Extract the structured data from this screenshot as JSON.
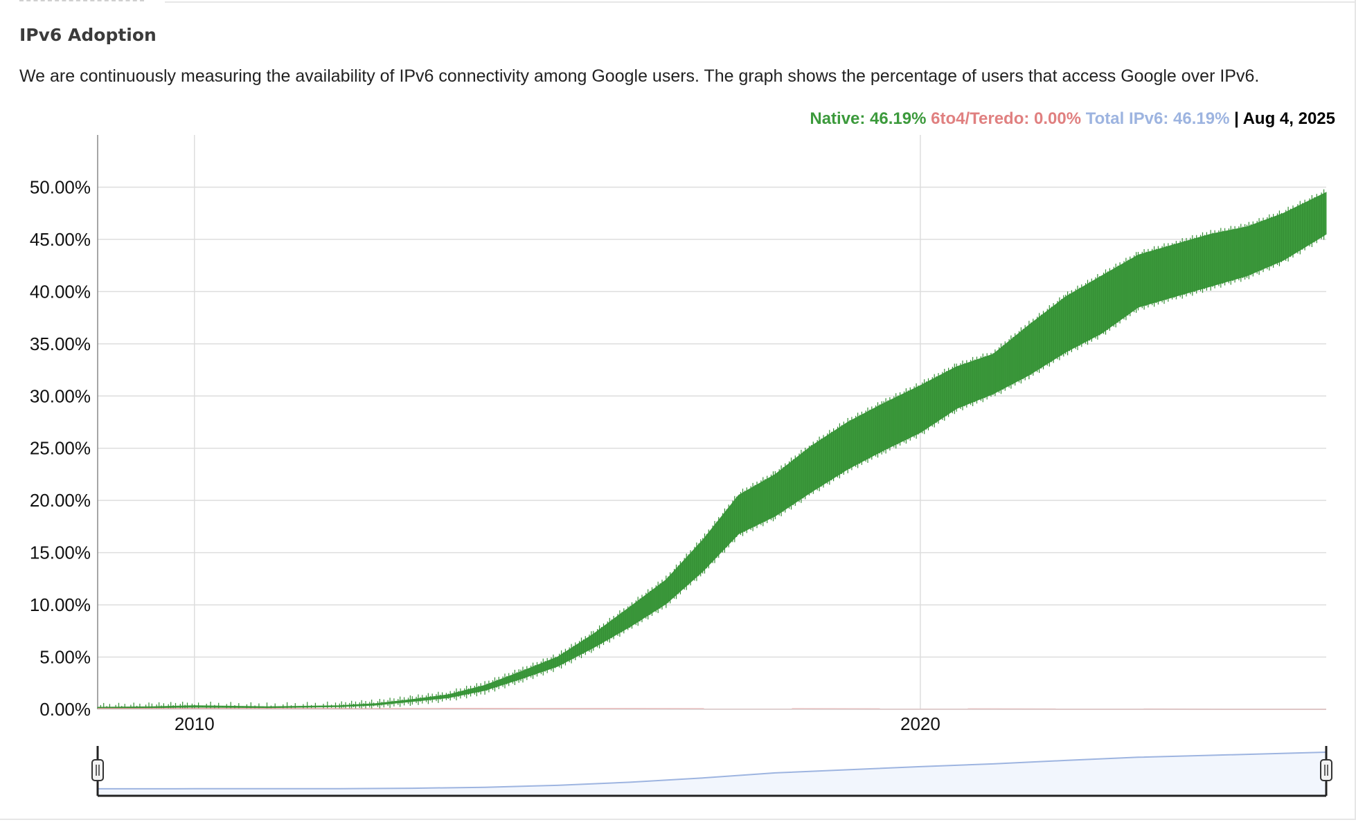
{
  "section": {
    "title": "IPv6 Adoption",
    "description": "We are continuously measuring the availability of IPv6 connectivity among Google users. The graph shows the percentage of users that access Google over IPv6."
  },
  "legend": {
    "native_label": "Native: 46.19%",
    "teredo_label": "6to4/Teredo: 0.00%",
    "total_label": "Total IPv6: 46.19%",
    "separator": "|",
    "date_label": "Aug 4, 2025"
  },
  "colors": {
    "native": "#3c9a3c",
    "teredo": "#e08080",
    "total": "#9db4e0",
    "grid": "#dddddd",
    "axis": "#555555"
  },
  "chart_data": {
    "type": "area",
    "title": "",
    "xlabel": "",
    "ylabel": "",
    "xlim": [
      "2008-09-01",
      "2025-08-04"
    ],
    "ylim": [
      0,
      55
    ],
    "grid": true,
    "legend_position": "top-right",
    "y_ticks": [
      "0.00%",
      "5.00%",
      "10.00%",
      "15.00%",
      "20.00%",
      "25.00%",
      "30.00%",
      "35.00%",
      "40.00%",
      "45.00%",
      "50.00%"
    ],
    "y_tick_values": [
      0,
      5,
      10,
      15,
      20,
      25,
      30,
      35,
      40,
      45,
      50
    ],
    "x_ticks": [
      "2010",
      "2020"
    ],
    "x_tick_values": [
      "2010-01-01",
      "2020-01-01"
    ],
    "series": [
      {
        "name": "Native",
        "x": [
          "2008-09-01",
          "2009-06-01",
          "2010-01-01",
          "2011-01-01",
          "2012-01-01",
          "2012-07-01",
          "2013-01-01",
          "2013-07-01",
          "2014-01-01",
          "2014-07-01",
          "2015-01-01",
          "2015-07-01",
          "2016-01-01",
          "2016-07-01",
          "2017-01-01",
          "2017-07-01",
          "2018-01-01",
          "2018-07-01",
          "2019-01-01",
          "2019-07-01",
          "2020-01-01",
          "2020-07-01",
          "2021-01-01",
          "2021-07-01",
          "2022-01-01",
          "2022-07-01",
          "2023-01-01",
          "2023-07-01",
          "2024-01-01",
          "2024-07-01",
          "2025-01-01",
          "2025-08-04"
        ],
        "low": [
          0.1,
          0.15,
          0.2,
          0.15,
          0.25,
          0.4,
          0.75,
          1.1,
          1.8,
          2.9,
          4.1,
          5.9,
          7.9,
          10.1,
          13.2,
          16.8,
          18.5,
          20.8,
          23.0,
          24.8,
          26.5,
          28.8,
          30.2,
          32.0,
          34.2,
          36.0,
          38.5,
          39.5,
          40.5,
          41.5,
          43.0,
          45.5
        ],
        "high": [
          0.2,
          0.25,
          0.35,
          0.25,
          0.35,
          0.55,
          0.95,
          1.4,
          2.3,
          3.6,
          5.0,
          7.2,
          9.8,
          12.4,
          16.2,
          20.5,
          22.5,
          25.2,
          27.5,
          29.3,
          31.0,
          32.8,
          34.0,
          36.8,
          39.5,
          41.5,
          43.5,
          44.5,
          45.5,
          46.2,
          47.5,
          49.5
        ]
      },
      {
        "name": "6to4/Teredo",
        "x": [
          "2008-09-01",
          "2025-08-04"
        ],
        "values": [
          0.05,
          0.0
        ]
      }
    ]
  },
  "navigator": {
    "x": [
      "2008-09-01",
      "2010-01-01",
      "2012-01-01",
      "2013-01-01",
      "2014-01-01",
      "2015-01-01",
      "2016-01-01",
      "2017-01-01",
      "2018-01-01",
      "2019-01-01",
      "2020-01-01",
      "2021-01-01",
      "2022-01-01",
      "2023-01-01",
      "2024-01-01",
      "2025-08-04"
    ],
    "values": [
      0.1,
      0.2,
      0.3,
      0.8,
      2.0,
      4.5,
      8.5,
      14.0,
      20.5,
      24.5,
      28.5,
      32.0,
      36.5,
      40.5,
      43.0,
      47.0
    ]
  }
}
